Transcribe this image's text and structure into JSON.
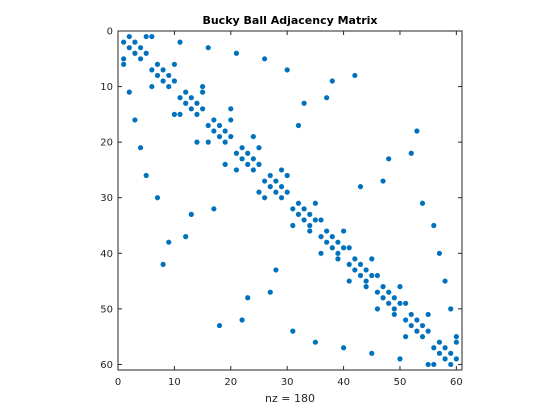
{
  "chart_data": {
    "type": "scatter",
    "title": "Bucky Ball Adjacency Matrix",
    "xlabel": "nz = 180",
    "ylabel": "",
    "xlim": [
      0,
      61
    ],
    "ylim": [
      0,
      61
    ],
    "y_reversed": true,
    "grid": false,
    "legend": "none",
    "marker_color": "#0072bd",
    "axis_color": "#262626",
    "xticks": [
      0,
      10,
      20,
      30,
      40,
      50,
      60
    ],
    "yticks": [
      0,
      10,
      20,
      30,
      40,
      50,
      60
    ],
    "nz": 180,
    "edges": [
      [
        1,
        2
      ],
      [
        2,
        3
      ],
      [
        3,
        4
      ],
      [
        4,
        5
      ],
      [
        5,
        1
      ],
      [
        1,
        6
      ],
      [
        2,
        11
      ],
      [
        3,
        16
      ],
      [
        4,
        21
      ],
      [
        5,
        26
      ],
      [
        6,
        7
      ],
      [
        7,
        8
      ],
      [
        8,
        9
      ],
      [
        9,
        10
      ],
      [
        10,
        6
      ],
      [
        7,
        30
      ],
      [
        8,
        42
      ],
      [
        9,
        38
      ],
      [
        10,
        15
      ],
      [
        11,
        12
      ],
      [
        12,
        13
      ],
      [
        13,
        14
      ],
      [
        14,
        15
      ],
      [
        15,
        11
      ],
      [
        12,
        37
      ],
      [
        13,
        33
      ],
      [
        14,
        20
      ],
      [
        16,
        17
      ],
      [
        17,
        18
      ],
      [
        18,
        19
      ],
      [
        19,
        20
      ],
      [
        20,
        16
      ],
      [
        17,
        32
      ],
      [
        18,
        53
      ],
      [
        19,
        24
      ],
      [
        21,
        22
      ],
      [
        22,
        23
      ],
      [
        23,
        24
      ],
      [
        24,
        25
      ],
      [
        25,
        21
      ],
      [
        22,
        52
      ],
      [
        23,
        48
      ],
      [
        25,
        29
      ],
      [
        26,
        27
      ],
      [
        27,
        28
      ],
      [
        28,
        29
      ],
      [
        29,
        30
      ],
      [
        30,
        26
      ],
      [
        27,
        47
      ],
      [
        28,
        43
      ],
      [
        31,
        32
      ],
      [
        32,
        33
      ],
      [
        33,
        34
      ],
      [
        34,
        35
      ],
      [
        35,
        31
      ],
      [
        31,
        54
      ],
      [
        34,
        36
      ],
      [
        35,
        56
      ],
      [
        36,
        37
      ],
      [
        37,
        38
      ],
      [
        38,
        39
      ],
      [
        39,
        40
      ],
      [
        40,
        36
      ],
      [
        39,
        41
      ],
      [
        40,
        57
      ],
      [
        41,
        42
      ],
      [
        42,
        43
      ],
      [
        43,
        44
      ],
      [
        44,
        45
      ],
      [
        45,
        41
      ],
      [
        44,
        46
      ],
      [
        45,
        58
      ],
      [
        46,
        47
      ],
      [
        47,
        48
      ],
      [
        48,
        49
      ],
      [
        49,
        50
      ],
      [
        50,
        46
      ],
      [
        49,
        51
      ],
      [
        50,
        59
      ],
      [
        51,
        52
      ],
      [
        52,
        53
      ],
      [
        53,
        54
      ],
      [
        54,
        55
      ],
      [
        55,
        51
      ],
      [
        55,
        60
      ],
      [
        56,
        57
      ],
      [
        57,
        58
      ],
      [
        58,
        59
      ],
      [
        59,
        60
      ],
      [
        60,
        56
      ]
    ]
  }
}
